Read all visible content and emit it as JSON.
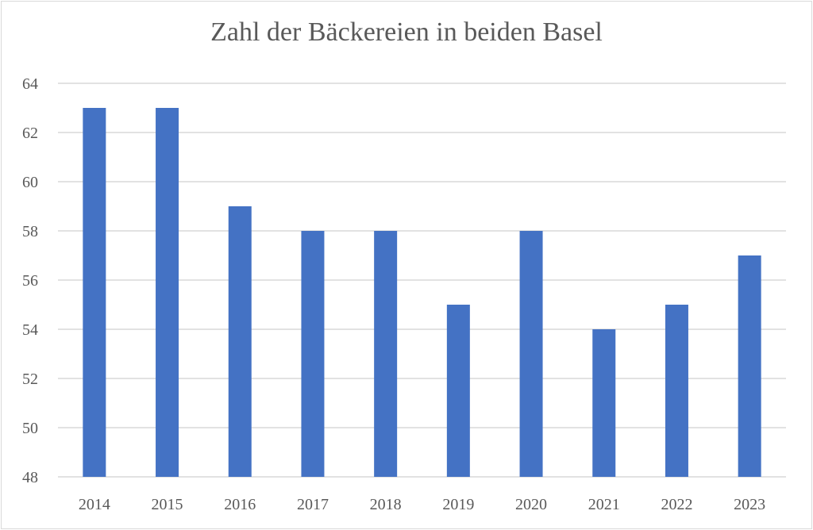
{
  "chart_data": {
    "type": "bar",
    "title": "Zahl der Bäckereien in beiden Basel",
    "categories": [
      "2014",
      "2015",
      "2016",
      "2017",
      "2018",
      "2019",
      "2020",
      "2021",
      "2022",
      "2023"
    ],
    "values": [
      63,
      63,
      59,
      58,
      58,
      55,
      58,
      54,
      55,
      57
    ],
    "xlabel": "",
    "ylabel": "",
    "ylim": [
      48,
      64
    ],
    "yticks": [
      48,
      50,
      52,
      54,
      56,
      58,
      60,
      62,
      64
    ],
    "grid": true,
    "legend": "none",
    "bar_color": "#4472C4",
    "grid_color": "#d9d9d9"
  }
}
